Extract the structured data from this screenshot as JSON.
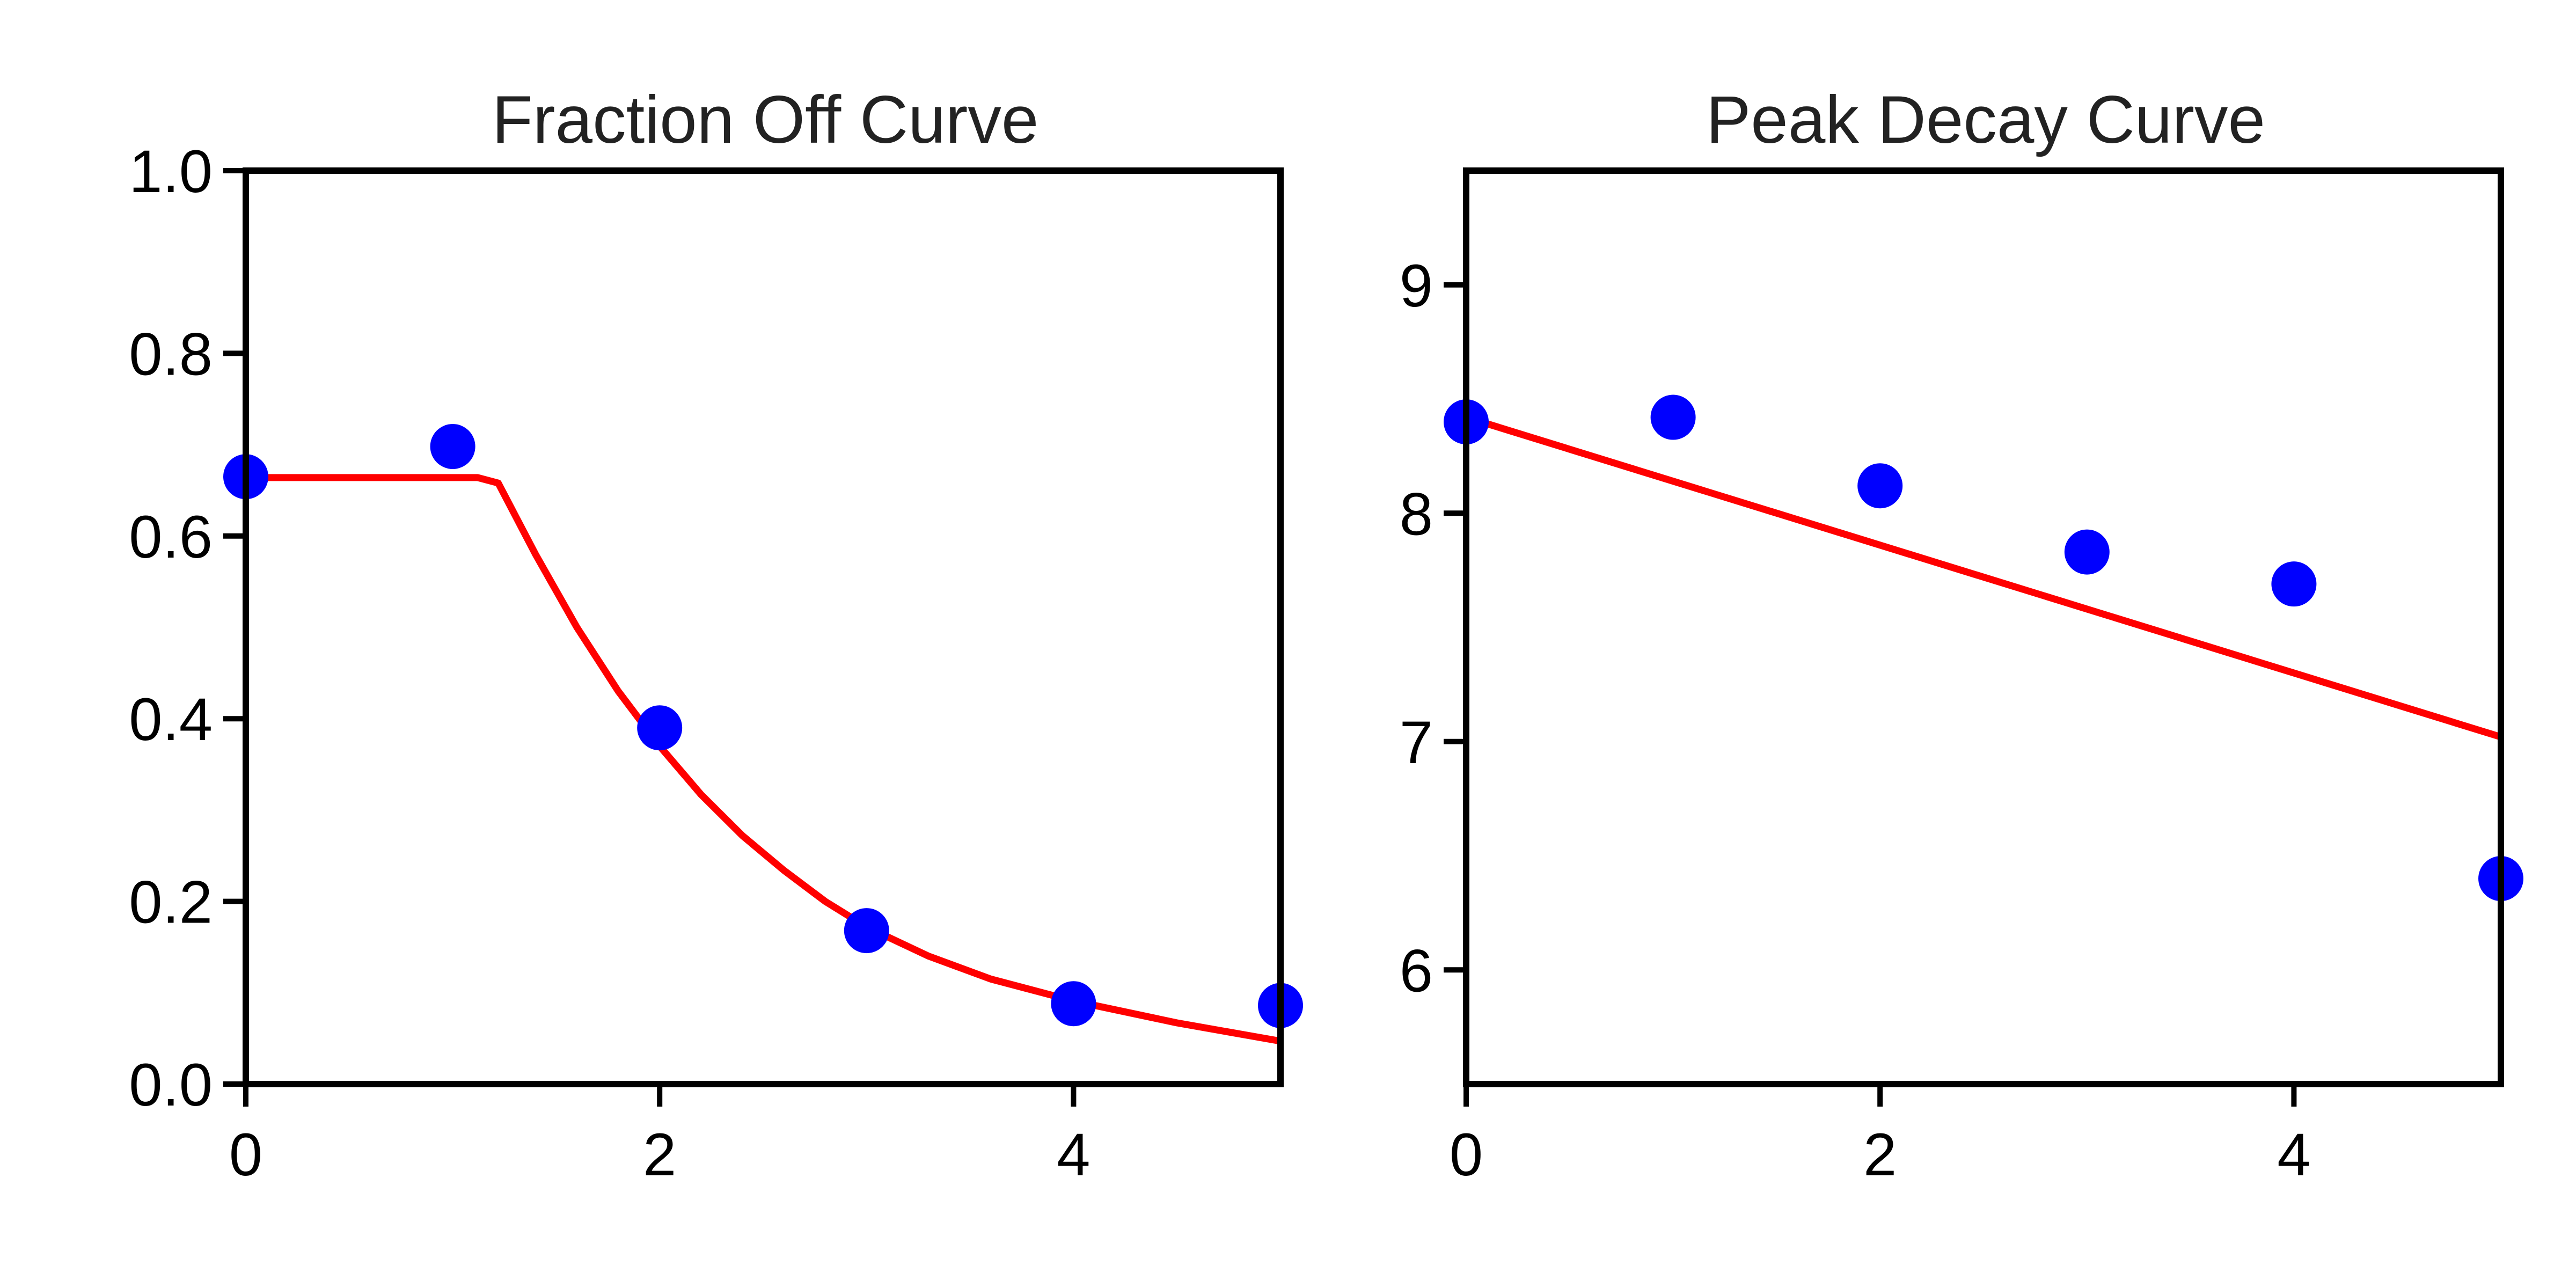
{
  "chart_data": [
    {
      "type": "scatter",
      "title": "Fraction Off Curve",
      "xlabel": "",
      "ylabel": "",
      "xlim": [
        0,
        5
      ],
      "ylim": [
        0,
        1.0
      ],
      "xticks": [
        0,
        2,
        4
      ],
      "xtick_labels": [
        "0",
        "2",
        "4"
      ],
      "yticks": [
        0.0,
        0.2,
        0.4,
        0.6,
        0.8,
        1.0
      ],
      "ytick_labels": [
        "0.0",
        "0.2",
        "0.4",
        "0.6",
        "0.8",
        "1.0"
      ],
      "grid": false,
      "points": {
        "color": "#0000ff",
        "x": [
          0,
          1,
          2,
          3,
          4,
          5
        ],
        "y": [
          0.665,
          0.698,
          0.39,
          0.168,
          0.088,
          0.086
        ]
      },
      "fit": {
        "color": "#ff0000",
        "x": [
          0,
          1.12,
          1.22,
          1.4,
          1.6,
          1.8,
          2.0,
          2.2,
          2.4,
          2.6,
          2.8,
          3.0,
          3.3,
          3.6,
          4.0,
          4.5,
          5.0
        ],
        "y": [
          0.664,
          0.664,
          0.658,
          0.58,
          0.5,
          0.43,
          0.37,
          0.317,
          0.272,
          0.234,
          0.2,
          0.172,
          0.14,
          0.115,
          0.091,
          0.067,
          0.047
        ]
      }
    },
    {
      "type": "scatter",
      "title": "Peak Decay Curve",
      "xlabel": "",
      "ylabel": "",
      "xlim": [
        0,
        5
      ],
      "ylim": [
        5.5,
        9.5
      ],
      "xticks": [
        0,
        2,
        4
      ],
      "xtick_labels": [
        "0",
        "2",
        "4"
      ],
      "yticks": [
        6,
        7,
        8,
        9
      ],
      "ytick_labels": [
        "6",
        "7",
        "8",
        "9"
      ],
      "grid": false,
      "points": {
        "color": "#0000ff",
        "x": [
          0,
          1,
          2,
          3,
          4,
          5
        ],
        "y": [
          8.4,
          8.42,
          8.12,
          7.83,
          7.69,
          6.4
        ]
      },
      "fit": {
        "color": "#ff0000",
        "x": [
          0,
          5
        ],
        "y": [
          8.42,
          7.02
        ]
      }
    }
  ]
}
